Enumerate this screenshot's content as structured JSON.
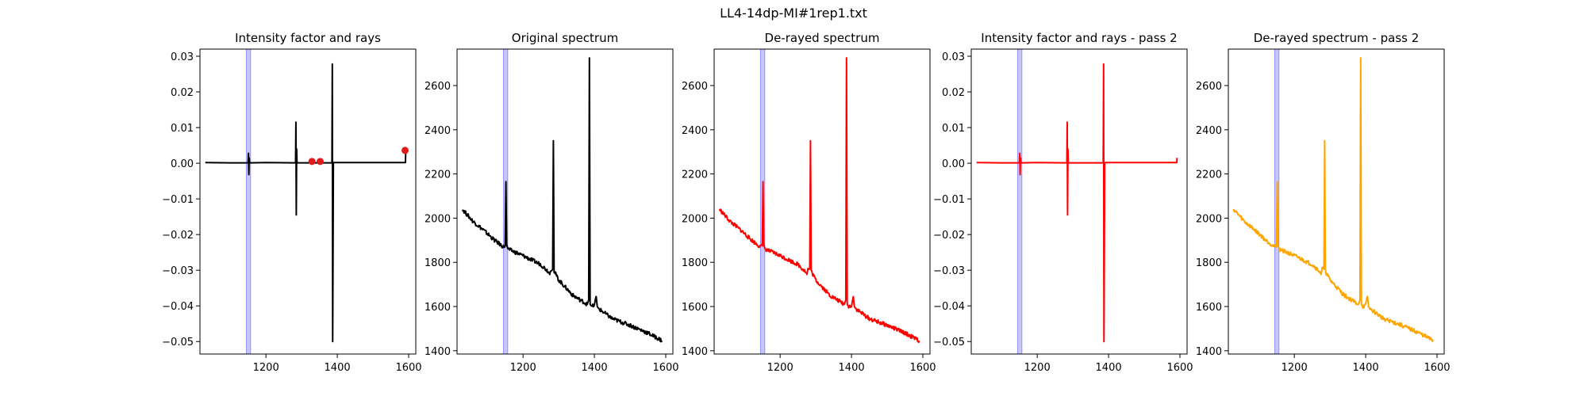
{
  "figure_title": "LL4-14dp-MI#1rep1.txt",
  "colors": {
    "band": "#0000ff",
    "black": "#000000",
    "red": "#ff0000",
    "orange": "#ffa500",
    "ray_marker": "#e31a1c"
  },
  "chart_data": [
    {
      "type": "line",
      "title": "Intensity factor and rays",
      "xlabel": "",
      "ylabel": "",
      "xlim": [
        1015,
        1620
      ],
      "ylim": [
        -0.0535,
        0.032
      ],
      "xticks": [
        1200,
        1400,
        1600
      ],
      "yticks": [
        -0.05,
        -0.04,
        -0.03,
        -0.02,
        -0.01,
        0.0,
        0.01,
        0.02,
        0.03
      ],
      "ytick_labels": [
        "−0.05",
        "−0.04",
        "−0.03",
        "−0.02",
        "−0.01",
        "0.00",
        "0.01",
        "0.02",
        "0.03"
      ],
      "highlight_band": [
        1145,
        1157
      ],
      "series": [
        {
          "color": "black",
          "kind": "factor",
          "x": [
            1030,
            1100,
            1150,
            1151,
            1152,
            1153,
            1154,
            1200,
            1283,
            1284,
            1285,
            1286,
            1287,
            1385,
            1386,
            1387,
            1388,
            1389,
            1390,
            1591,
            1592
          ],
          "y": [
            0.0002,
            0.0001,
            0.0001,
            0.0028,
            -0.0032,
            0.0015,
            0.0001,
            0.0002,
            0.0001,
            0.0115,
            -0.0145,
            0.004,
            0.0001,
            0.0001,
            0.0278,
            -0.05,
            -0.026,
            0.0001,
            0.0002,
            0.0002,
            0.004
          ]
        }
      ],
      "markers": {
        "color": "ray_marker",
        "x": [
          1329,
          1352,
          1590
        ],
        "y": [
          0.0005,
          0.0005,
          0.0036
        ]
      }
    },
    {
      "type": "line",
      "title": "Original spectrum",
      "xlabel": "",
      "ylabel": "",
      "xlim": [
        1015,
        1620
      ],
      "ylim": [
        1385,
        2765
      ],
      "xticks": [
        1200,
        1400,
        1600
      ],
      "yticks": [
        1400,
        1600,
        1800,
        2000,
        2200,
        2400,
        2600
      ],
      "highlight_band": [
        1145,
        1157
      ],
      "series": [
        {
          "color": "black",
          "kind": "spectrum",
          "x": [
            1030,
            1060,
            1090,
            1120,
            1145,
            1150,
            1152,
            1154,
            1158,
            1200,
            1250,
            1270,
            1275,
            1278,
            1283,
            1285,
            1287,
            1300,
            1340,
            1380,
            1384,
            1386,
            1388,
            1392,
            1400,
            1405,
            1408,
            1412,
            1450,
            1500,
            1550,
            1590
          ],
          "y": [
            2040,
            1985,
            1945,
            1900,
            1870,
            1875,
            2165,
            1880,
            1860,
            1830,
            1790,
            1760,
            1745,
            1770,
            1770,
            2350,
            1760,
            1720,
            1650,
            1610,
            1630,
            2725,
            1610,
            1600,
            1605,
            1645,
            1600,
            1590,
            1545,
            1515,
            1480,
            1445
          ]
        }
      ]
    },
    {
      "type": "line",
      "title": "De-rayed spectrum",
      "xlabel": "",
      "ylabel": "",
      "xlim": [
        1015,
        1620
      ],
      "ylim": [
        1385,
        2765
      ],
      "xticks": [
        1200,
        1400,
        1600
      ],
      "yticks": [
        1400,
        1600,
        1800,
        2000,
        2200,
        2400,
        2600
      ],
      "highlight_band": [
        1145,
        1157
      ],
      "series": [
        {
          "color": "red",
          "kind": "spectrum",
          "x": [
            1030,
            1060,
            1090,
            1120,
            1145,
            1150,
            1152,
            1154,
            1158,
            1200,
            1250,
            1270,
            1275,
            1278,
            1283,
            1285,
            1287,
            1300,
            1340,
            1380,
            1384,
            1386,
            1388,
            1392,
            1400,
            1405,
            1408,
            1412,
            1450,
            1500,
            1550,
            1590
          ],
          "y": [
            2040,
            1985,
            1945,
            1900,
            1870,
            1875,
            2165,
            1880,
            1860,
            1830,
            1790,
            1760,
            1745,
            1770,
            1770,
            2350,
            1760,
            1720,
            1650,
            1610,
            1630,
            2725,
            1610,
            1600,
            1605,
            1645,
            1600,
            1590,
            1545,
            1515,
            1480,
            1445
          ]
        }
      ]
    },
    {
      "type": "line",
      "title": "Intensity factor and rays - pass 2",
      "xlabel": "",
      "ylabel": "",
      "xlim": [
        1015,
        1620
      ],
      "ylim": [
        -0.0535,
        0.032
      ],
      "xticks": [
        1200,
        1400,
        1600
      ],
      "yticks": [
        -0.05,
        -0.04,
        -0.03,
        -0.02,
        -0.01,
        0.0,
        0.01,
        0.02,
        0.03
      ],
      "ytick_labels": [
        "−0.05",
        "−0.04",
        "−0.03",
        "−0.02",
        "−0.01",
        "0.00",
        "0.01",
        "0.02",
        "0.03"
      ],
      "highlight_band": [
        1145,
        1157
      ],
      "series": [
        {
          "color": "red",
          "kind": "factor",
          "x": [
            1030,
            1100,
            1150,
            1151,
            1152,
            1153,
            1154,
            1200,
            1283,
            1284,
            1285,
            1286,
            1287,
            1385,
            1386,
            1387,
            1388,
            1389,
            1390,
            1591,
            1592
          ],
          "y": [
            0.0002,
            0.0001,
            0.0001,
            0.0028,
            -0.0032,
            0.0015,
            0.0001,
            0.0002,
            0.0001,
            0.0115,
            -0.0145,
            0.004,
            0.0001,
            0.0001,
            0.0278,
            -0.05,
            -0.026,
            0.0001,
            0.0002,
            0.0002,
            0.0015
          ]
        }
      ]
    },
    {
      "type": "line",
      "title": "De-rayed spectrum - pass 2",
      "xlabel": "",
      "ylabel": "",
      "xlim": [
        1015,
        1620
      ],
      "ylim": [
        1385,
        2765
      ],
      "xticks": [
        1200,
        1400,
        1600
      ],
      "yticks": [
        1400,
        1600,
        1800,
        2000,
        2200,
        2400,
        2600
      ],
      "highlight_band": [
        1145,
        1157
      ],
      "series": [
        {
          "color": "orange",
          "kind": "spectrum",
          "x": [
            1030,
            1060,
            1090,
            1120,
            1145,
            1150,
            1152,
            1154,
            1158,
            1200,
            1250,
            1270,
            1275,
            1278,
            1283,
            1285,
            1287,
            1300,
            1340,
            1380,
            1384,
            1386,
            1388,
            1392,
            1400,
            1405,
            1408,
            1412,
            1450,
            1500,
            1550,
            1590
          ],
          "y": [
            2040,
            1985,
            1945,
            1900,
            1870,
            1875,
            2165,
            1880,
            1860,
            1830,
            1790,
            1760,
            1745,
            1770,
            1770,
            2350,
            1760,
            1720,
            1650,
            1610,
            1630,
            2725,
            1610,
            1600,
            1605,
            1645,
            1600,
            1590,
            1545,
            1515,
            1480,
            1445
          ]
        }
      ]
    }
  ]
}
